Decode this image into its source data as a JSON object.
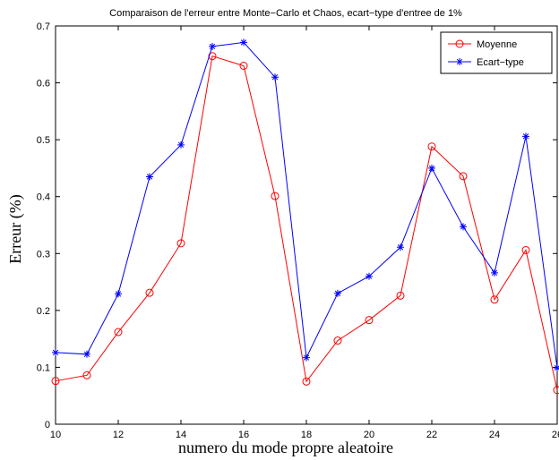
{
  "chart_data": {
    "type": "line",
    "title": "Comparaison de l'erreur entre Monte−Carlo et Chaos, ecart−type d'entree de 1%",
    "xlabel": "numero du mode propre aleatoire",
    "ylabel": "Erreur  (%)",
    "xlim": [
      10,
      26
    ],
    "ylim": [
      0,
      0.7
    ],
    "x": [
      10,
      11,
      12,
      13,
      14,
      15,
      16,
      17,
      18,
      19,
      20,
      21,
      22,
      23,
      24,
      25,
      26
    ],
    "xticks": [
      10,
      12,
      14,
      16,
      18,
      20,
      22,
      24,
      26
    ],
    "xtick_labels": [
      "10",
      "12",
      "14",
      "16",
      "18",
      "20",
      "22",
      "24",
      "26"
    ],
    "yticks": [
      0,
      0.1,
      0.2,
      0.3,
      0.4,
      0.5,
      0.6,
      0.7
    ],
    "ytick_labels": [
      "0",
      "0.1",
      "0.2",
      "0.3",
      "0.4",
      "0.5",
      "0.6",
      "0.7"
    ],
    "grid": false,
    "legend_position": "top-right",
    "series": [
      {
        "name": "Moyenne",
        "color": "#ff0000",
        "marker": "circle",
        "values": [
          0.076,
          0.086,
          0.162,
          0.231,
          0.318,
          0.647,
          0.63,
          0.401,
          0.075,
          0.147,
          0.183,
          0.226,
          0.488,
          0.436,
          0.219,
          0.306,
          0.06
        ]
      },
      {
        "name": "Ecart−type",
        "color": "#0000ff",
        "marker": "asterisk",
        "values": [
          0.126,
          0.123,
          0.229,
          0.435,
          0.491,
          0.664,
          0.671,
          0.61,
          0.117,
          0.23,
          0.26,
          0.311,
          0.45,
          0.347,
          0.266,
          0.506,
          0.099
        ]
      }
    ]
  }
}
